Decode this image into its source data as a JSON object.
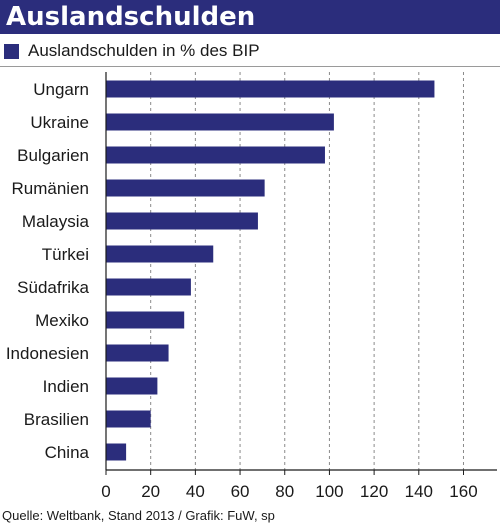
{
  "header": {
    "title": "Auslandschulden"
  },
  "colors": {
    "accent": "#2b2d7c"
  },
  "footer": {
    "source": "Quelle: Weltbank, Stand 2013 / Grafik: FuW, sp"
  },
  "chart_data": {
    "type": "bar",
    "orientation": "horizontal",
    "title": "Auslandschulden",
    "categories": [
      "Ungarn",
      "Ukraine",
      "Bulgarien",
      "Rumänien",
      "Malaysia",
      "Türkei",
      "Südafrika",
      "Mexiko",
      "Indonesien",
      "Indien",
      "Brasilien",
      "China"
    ],
    "series": [
      {
        "name": "Auslandschulden in % des BIP",
        "values": [
          147,
          102,
          98,
          71,
          68,
          48,
          38,
          35,
          28,
          23,
          20,
          9
        ]
      }
    ],
    "xlim": [
      0,
      175
    ],
    "xticks": [
      "0",
      "20",
      "40",
      "60",
      "80",
      "100",
      "120",
      "140",
      "160"
    ],
    "grid": "vertical dashed",
    "legend": "top-left"
  }
}
